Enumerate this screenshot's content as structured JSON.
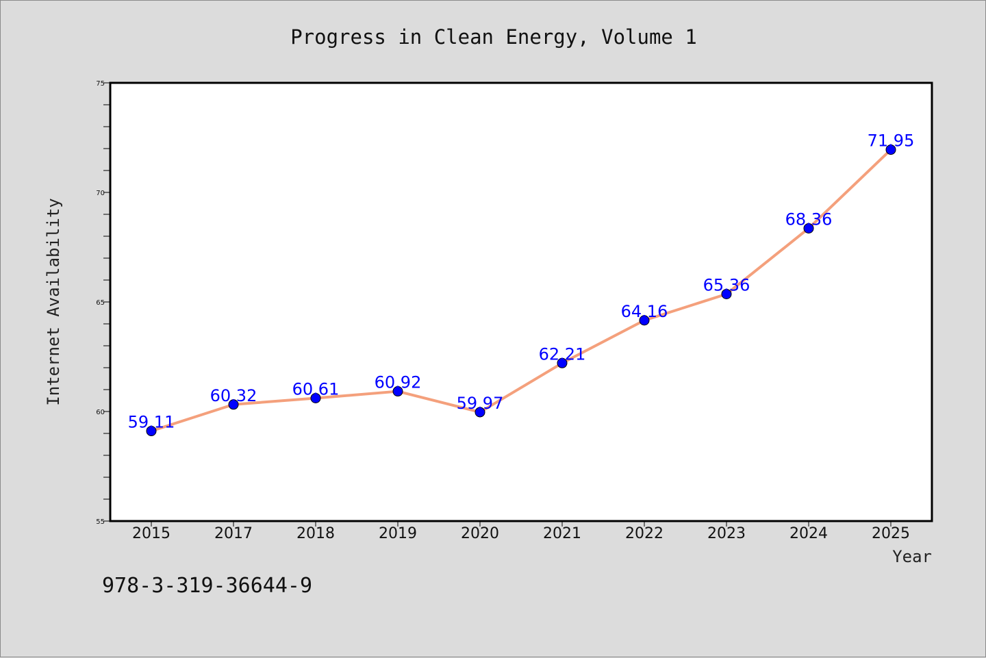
{
  "chart_data": {
    "type": "line",
    "title": "Progress in Clean Energy, Volume 1",
    "xlabel": "Year",
    "ylabel": "Internet Availability",
    "categories": [
      "2015",
      "2017",
      "2018",
      "2019",
      "2020",
      "2021",
      "2022",
      "2023",
      "2024",
      "2025"
    ],
    "series": [
      {
        "values": [
          59.11,
          60.32,
          60.61,
          60.92,
          59.97,
          62.21,
          64.16,
          65.36,
          68.36,
          71.95
        ],
        "data_labels": [
          "59.11",
          "60.32",
          "60.61",
          "60.92",
          "59.97",
          "62.21",
          "64.16",
          "65.36",
          "68.36",
          "71.95"
        ]
      }
    ],
    "ylim": [
      55,
      75
    ],
    "yticks": [
      "55",
      "60",
      "65",
      "70",
      "75"
    ],
    "yticks_values": [
      55,
      60,
      65,
      70,
      75
    ],
    "minor_tick_step": 1,
    "grid": false,
    "line_color": "#f4a07c",
    "marker_color": "#0000ff"
  },
  "footer": {
    "isbn": "978-3-319-36644-9"
  }
}
